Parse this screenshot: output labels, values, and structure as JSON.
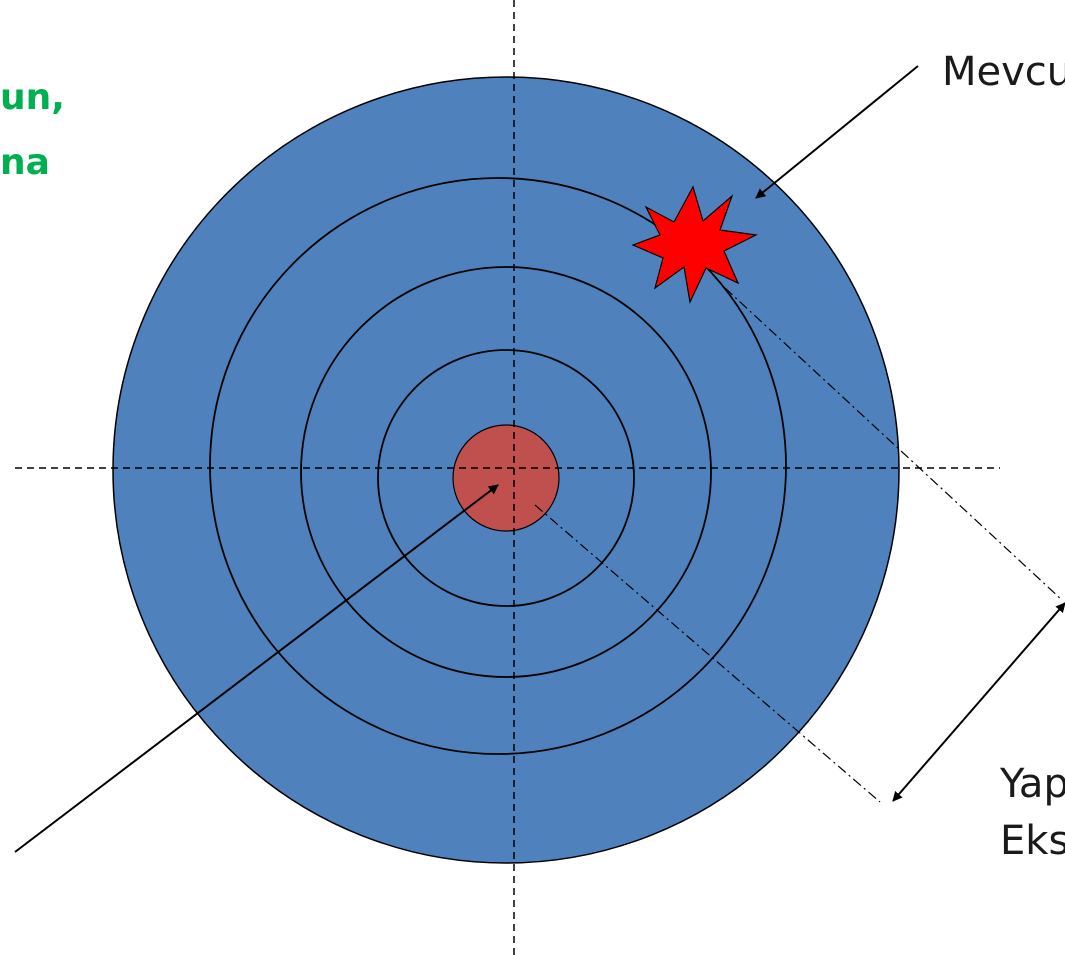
{
  "labels": {
    "green_line1": "un,",
    "green_line2": "na",
    "top_right": "Mevcu",
    "bottom_right_line1": "Yap",
    "bottom_right_line2": "Eks"
  },
  "colors": {
    "target_fill": "#4f81bd",
    "bullseye_fill": "#c0504d",
    "star_fill": "#ff0000",
    "green_text": "#00b050",
    "outline": "#000000"
  },
  "icons": {
    "burst": "red-starburst-icon"
  }
}
